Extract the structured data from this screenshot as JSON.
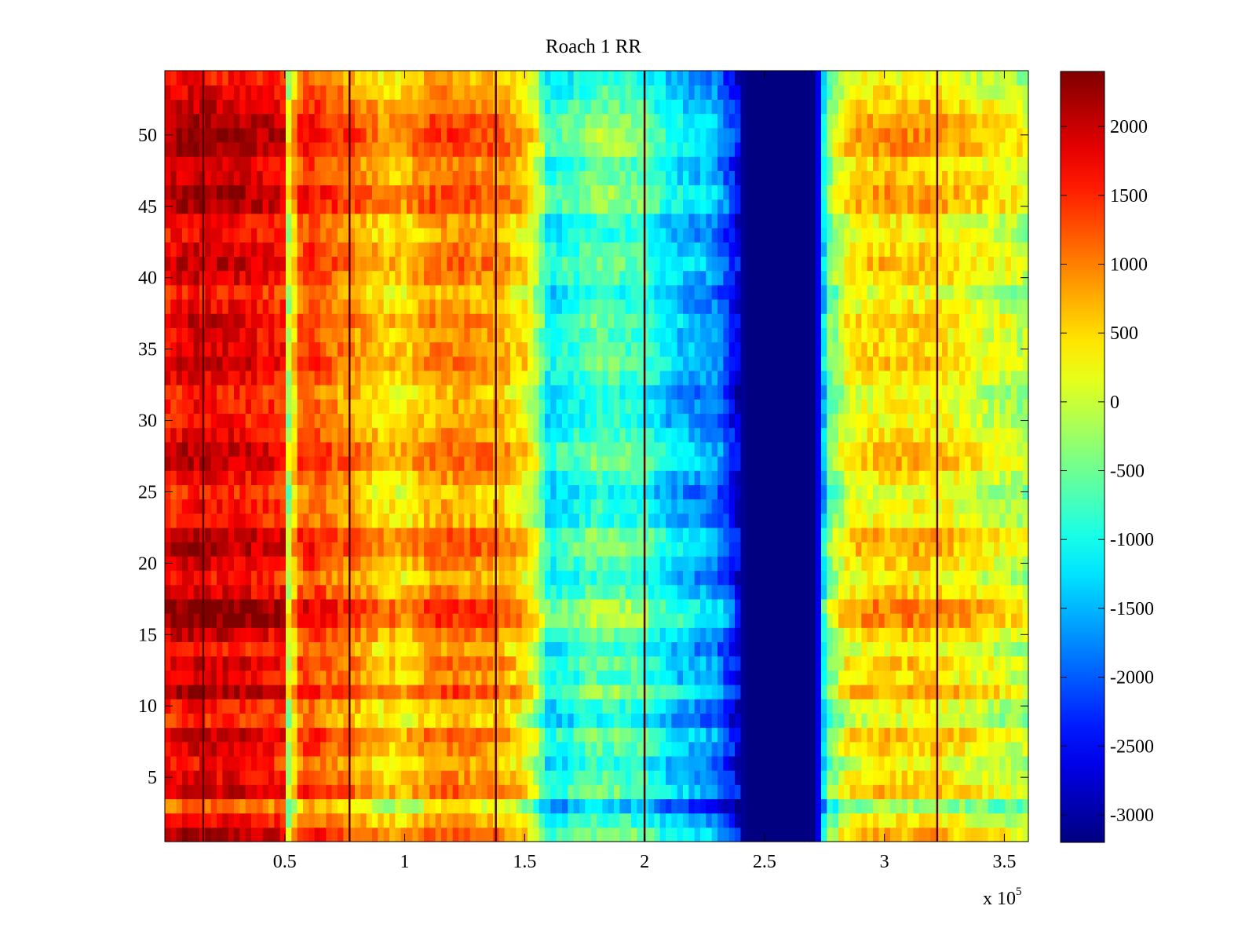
{
  "chart_data": {
    "type": "heatmap",
    "title": "Roach 1 RR",
    "xlabel": "",
    "ylabel": "",
    "x_multiplier_label": {
      "base": "x 10",
      "exponent": "5"
    },
    "xlim": [
      0,
      360000
    ],
    "ylim": [
      0.5,
      54.5
    ],
    "x_ticks": [
      {
        "value": 50000,
        "label": "0.5"
      },
      {
        "value": 100000,
        "label": "1"
      },
      {
        "value": 150000,
        "label": "1.5"
      },
      {
        "value": 200000,
        "label": "2"
      },
      {
        "value": 250000,
        "label": "2.5"
      },
      {
        "value": 300000,
        "label": "3"
      },
      {
        "value": 350000,
        "label": "3.5"
      }
    ],
    "y_ticks": [
      {
        "value": 5,
        "label": "5"
      },
      {
        "value": 10,
        "label": "10"
      },
      {
        "value": 15,
        "label": "15"
      },
      {
        "value": 20,
        "label": "20"
      },
      {
        "value": 25,
        "label": "25"
      },
      {
        "value": 30,
        "label": "30"
      },
      {
        "value": 35,
        "label": "35"
      },
      {
        "value": 40,
        "label": "40"
      },
      {
        "value": 45,
        "label": "45"
      },
      {
        "value": 50,
        "label": "50"
      }
    ],
    "colormap": "jet",
    "clim": [
      -3200,
      2400
    ],
    "colorbar_ticks": [
      {
        "value": 2000,
        "label": "2000"
      },
      {
        "value": 1500,
        "label": "1500"
      },
      {
        "value": 1000,
        "label": "1000"
      },
      {
        "value": 500,
        "label": "500"
      },
      {
        "value": 0,
        "label": "0"
      },
      {
        "value": -500,
        "label": "-500"
      },
      {
        "value": -1000,
        "label": "-1000"
      },
      {
        "value": -1500,
        "label": "-1500"
      },
      {
        "value": -2000,
        "label": "-2000"
      },
      {
        "value": -2500,
        "label": "-2500"
      },
      {
        "value": -3000,
        "label": "-3000"
      }
    ],
    "column_profile": {
      "x": [
        0,
        10000,
        30000,
        50000,
        52000,
        55000,
        60000,
        70000,
        80000,
        90000,
        100000,
        110000,
        120000,
        130000,
        140000,
        150000,
        155000,
        160000,
        170000,
        180000,
        190000,
        200000,
        210000,
        220000,
        230000,
        238000,
        242000,
        250000,
        260000,
        270000,
        273000,
        276000,
        285000,
        300000,
        320000,
        340000,
        360000
      ],
      "value": [
        1500,
        1700,
        1600,
        1400,
        -700,
        900,
        1200,
        900,
        700,
        400,
        300,
        700,
        800,
        700,
        600,
        200,
        -300,
        -1300,
        -1100,
        -800,
        -900,
        -1000,
        -1500,
        -1700,
        -1900,
        -2700,
        -3200,
        -3200,
        -3200,
        -3200,
        -2500,
        -800,
        100,
        300,
        300,
        0,
        -300
      ]
    },
    "row_offsets": {
      "rows": [
        1,
        2,
        3,
        4,
        5,
        6,
        7,
        8,
        9,
        10,
        11,
        12,
        13,
        14,
        15,
        16,
        17,
        18,
        19,
        20,
        21,
        22,
        23,
        24,
        25,
        26,
        27,
        28,
        29,
        30,
        31,
        32,
        33,
        34,
        35,
        36,
        37,
        38,
        39,
        40,
        41,
        42,
        43,
        44,
        45,
        46,
        47,
        48,
        49,
        50,
        51,
        52,
        53,
        54
      ],
      "offset": [
        600,
        100,
        -600,
        500,
        200,
        0,
        300,
        500,
        -200,
        0,
        700,
        200,
        400,
        0,
        400,
        900,
        900,
        300,
        0,
        300,
        600,
        600,
        0,
        0,
        -200,
        100,
        500,
        500,
        200,
        0,
        0,
        -100,
        200,
        400,
        300,
        200,
        400,
        100,
        -100,
        300,
        500,
        300,
        0,
        100,
        700,
        700,
        400,
        300,
        800,
        800,
        700,
        400,
        200,
        0
      ]
    },
    "dark_vertical_lines": [
      16000,
      77000,
      138000,
      200000,
      322000
    ]
  }
}
